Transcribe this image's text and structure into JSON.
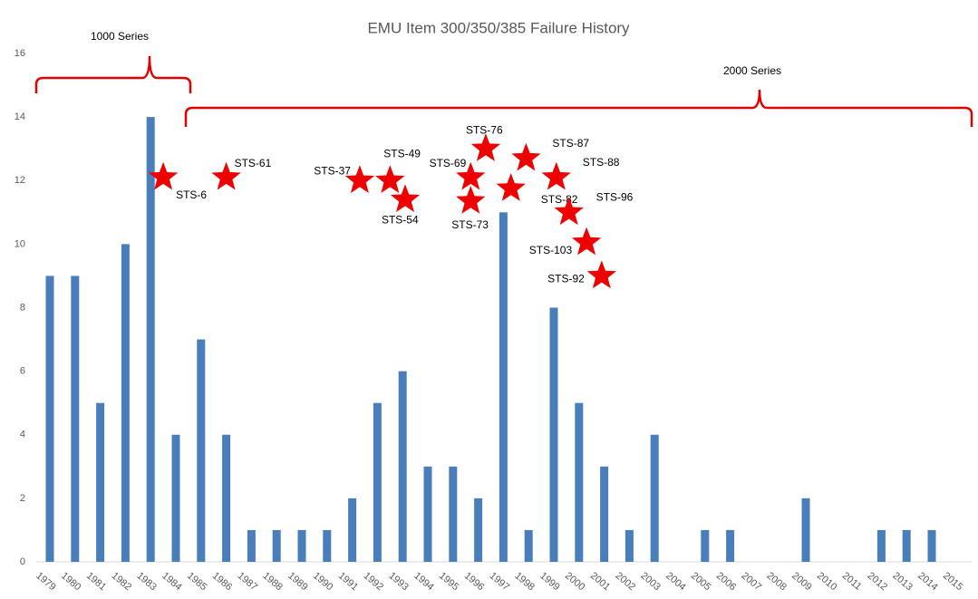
{
  "chart_data": {
    "type": "bar",
    "title": "EMU Item 300/350/385 Failure History",
    "categories": [
      "1979",
      "1980",
      "1981",
      "1982",
      "1983",
      "1984",
      "1985",
      "1986",
      "1987",
      "1988",
      "1989",
      "1990",
      "1991",
      "1992",
      "1993",
      "1994",
      "1995",
      "1996",
      "1997",
      "1998",
      "1999",
      "2000",
      "2001",
      "2002",
      "2003",
      "2004",
      "2005",
      "2006",
      "2007",
      "2008",
      "2009",
      "2010",
      "2011",
      "2012",
      "2013",
      "2014",
      "2015"
    ],
    "values": [
      9,
      9,
      5,
      10,
      14,
      4,
      7,
      4,
      1,
      1,
      1,
      1,
      2,
      5,
      6,
      3,
      3,
      2,
      11,
      1,
      8,
      5,
      3,
      1,
      4,
      0,
      1,
      1,
      0,
      0,
      2,
      0,
      0,
      1,
      1,
      1,
      0
    ],
    "color": "#4a7ebb",
    "ylim": [
      0,
      16
    ],
    "yticks": [
      0,
      2,
      4,
      6,
      8,
      10,
      12,
      14,
      16
    ],
    "grid": false,
    "groups": [
      "1000 Series",
      "2000 Series"
    ],
    "annotations": [
      {
        "label": "STS-6",
        "x": 1983.5,
        "y": 12.1
      },
      {
        "label": "STS-61",
        "x": 1986.0,
        "y": 12.1
      },
      {
        "label": "STS-37",
        "x": 1991.3,
        "y": 12.0
      },
      {
        "label": "STS-49",
        "x": 1992.5,
        "y": 12.0
      },
      {
        "label": "STS-54",
        "x": 1993.1,
        "y": 11.4
      },
      {
        "label": "STS-69",
        "x": 1995.7,
        "y": 12.1
      },
      {
        "label": "STS-73",
        "x": 1995.7,
        "y": 11.35
      },
      {
        "label": "STS-76",
        "x": 1996.3,
        "y": 13.0
      },
      {
        "label": "STS-82",
        "x": 1997.3,
        "y": 11.75
      },
      {
        "label": "STS-87",
        "x": 1997.9,
        "y": 12.7
      },
      {
        "label": "STS-88",
        "x": 1999.1,
        "y": 12.1
      },
      {
        "label": "STS-96",
        "x": 1999.6,
        "y": 11.0
      },
      {
        "label": "STS-103",
        "x": 2000.3,
        "y": 10.05
      },
      {
        "label": "STS-92",
        "x": 2000.9,
        "y": 9.0
      }
    ],
    "star_color": "#ee0000"
  }
}
